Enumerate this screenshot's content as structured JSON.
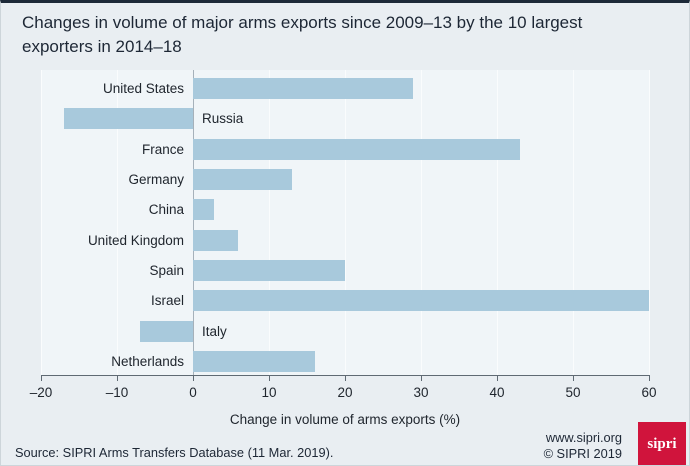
{
  "header": {
    "title_line1": "Changes in volume of major arms exports since 2009–13 by the 10 largest",
    "title_line2": "exporters in 2014–18"
  },
  "chart_data": {
    "type": "bar",
    "orientation": "horizontal",
    "title": "Changes in volume of major arms exports since 2009–13 by the 10 largest exporters in 2014–18",
    "categories": [
      "United States",
      "Russia",
      "France",
      "Germany",
      "China",
      "United Kingdom",
      "Spain",
      "Israel",
      "Italy",
      "Netherlands"
    ],
    "values": [
      29,
      -17,
      43,
      13,
      2.7,
      5.9,
      20,
      60,
      -7,
      16
    ],
    "xlabel": "Change in volume of arms exports (%)",
    "ylabel": "",
    "xlim": [
      -20,
      60
    ],
    "xticks": [
      -20,
      -10,
      0,
      10,
      20,
      30,
      40,
      50,
      60
    ],
    "xtick_labels": [
      "–20",
      "–10",
      "0",
      "10",
      "20",
      "30",
      "40",
      "50",
      "60"
    ],
    "grid": true,
    "legend": false,
    "bar_color": "#a8c9dc",
    "plot_background": "#f0f5f8",
    "page_background": "#e9eef2"
  },
  "footer": {
    "source": "Source: SIPRI Arms Transfers Database (11 Mar. 2019).",
    "website": "www.sipri.org",
    "copyright": "© SIPRI 2019",
    "logo_text": "sipri",
    "logo_color": "#d0143c"
  }
}
